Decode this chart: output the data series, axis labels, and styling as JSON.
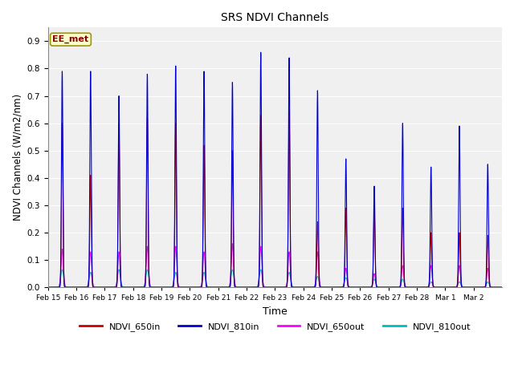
{
  "title": "SRS NDVI Channels",
  "xlabel": "Time",
  "ylabel": "NDVI Channels (W/m2/nm)",
  "ylim": [
    0,
    0.95
  ],
  "annotation_text": "EE_met",
  "annotation_facecolor": "#ffffcc",
  "annotation_edgecolor": "#999900",
  "annotation_textcolor": "#880000",
  "background_color": "#ffffff",
  "plot_bg_color": "#f0f0f0",
  "grid_color": "white",
  "line_colors": {
    "NDVI_650in": "#cc0000",
    "NDVI_810in": "#0000cc",
    "NDVI_650out": "#ff00ff",
    "NDVI_810out": "#00bbbb"
  },
  "tick_labels": [
    "Feb 15",
    "Feb 16",
    "Feb 17",
    "Feb 18",
    "Feb 19",
    "Feb 20",
    "Feb 21",
    "Feb 22",
    "Feb 23",
    "Feb 24",
    "Feb 25",
    "Feb 26",
    "Feb 27",
    "Feb 28",
    "Mar 1",
    "Mar 2"
  ],
  "daily_peaks_810in": [
    0.79,
    0.79,
    0.7,
    0.78,
    0.81,
    0.79,
    0.75,
    0.86,
    0.84,
    0.72,
    0.47,
    0.37,
    0.6,
    0.44,
    0.59,
    0.45
  ],
  "daily_peaks_650in": [
    0.6,
    0.41,
    0.6,
    0.62,
    0.6,
    0.52,
    0.5,
    0.63,
    0.65,
    0.24,
    0.29,
    0.29,
    0.29,
    0.2,
    0.2,
    0.19
  ],
  "daily_peaks_650out": [
    0.14,
    0.13,
    0.13,
    0.15,
    0.15,
    0.13,
    0.16,
    0.15,
    0.13,
    0.13,
    0.07,
    0.05,
    0.08,
    0.08,
    0.08,
    0.07
  ],
  "daily_peaks_810out": [
    0.065,
    0.055,
    0.065,
    0.065,
    0.055,
    0.055,
    0.065,
    0.065,
    0.055,
    0.04,
    0.035,
    0.03,
    0.03,
    0.02,
    0.02,
    0.02
  ],
  "peak_sigma": 0.025,
  "n_points_per_day": 500
}
